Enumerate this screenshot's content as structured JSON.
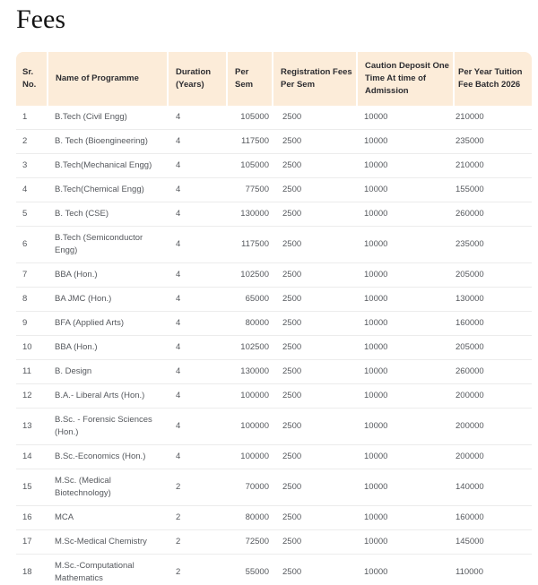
{
  "page": {
    "title": "Fees"
  },
  "colors": {
    "header_bg": "#fcecd9",
    "divider": "#ececec",
    "body_text": "#55585d",
    "header_text": "#2d2d31",
    "title_text": "#131313"
  },
  "table": {
    "fields": [
      "sr",
      "name",
      "duration",
      "per_sem",
      "registration",
      "caution",
      "per_year"
    ],
    "columns": [
      {
        "key": "sr",
        "label": "Sr. No."
      },
      {
        "key": "name",
        "label": "Name of Programme"
      },
      {
        "key": "duration",
        "label": "Duration (Years)"
      },
      {
        "key": "per_sem",
        "label": "Per Sem"
      },
      {
        "key": "registration",
        "label": "Registration Fees Per Sem"
      },
      {
        "key": "caution",
        "label": "Caution Deposit One Time At time of Admission"
      },
      {
        "key": "per_year",
        "label": "Per Year Tuition Fee Batch 2026"
      }
    ],
    "rows": [
      {
        "sr": "1",
        "name": "B.Tech (Civil Engg)",
        "duration": "4",
        "per_sem": "105000",
        "registration": "2500",
        "caution": "10000",
        "per_year": "210000"
      },
      {
        "sr": "2",
        "name": "B. Tech (Bioengineering)",
        "duration": "4",
        "per_sem": "117500",
        "registration": "2500",
        "caution": "10000",
        "per_year": "235000"
      },
      {
        "sr": "3",
        "name": "B.Tech(Mechanical Engg)",
        "duration": "4",
        "per_sem": "105000",
        "registration": "2500",
        "caution": "10000",
        "per_year": "210000"
      },
      {
        "sr": "4",
        "name": "B.Tech(Chemical Engg)",
        "duration": "4",
        "per_sem": "77500",
        "registration": "2500",
        "caution": "10000",
        "per_year": "155000"
      },
      {
        "sr": "5",
        "name": "B. Tech (CSE)",
        "duration": "4",
        "per_sem": "130000",
        "registration": "2500",
        "caution": "10000",
        "per_year": "260000"
      },
      {
        "sr": "6",
        "name": "B.Tech (Semiconductor Engg)",
        "duration": "4",
        "per_sem": "117500",
        "registration": "2500",
        "caution": "10000",
        "per_year": "235000"
      },
      {
        "sr": "7",
        "name": "BBA (Hon.)",
        "duration": "4",
        "per_sem": "102500",
        "registration": "2500",
        "caution": "10000",
        "per_year": "205000"
      },
      {
        "sr": "8",
        "name": "BA JMC (Hon.)",
        "duration": "4",
        "per_sem": "65000",
        "registration": "2500",
        "caution": "10000",
        "per_year": "130000"
      },
      {
        "sr": "9",
        "name": "BFA (Applied Arts)",
        "duration": "4",
        "per_sem": "80000",
        "registration": "2500",
        "caution": "10000",
        "per_year": "160000"
      },
      {
        "sr": "10",
        "name": "BBA (Hon.)",
        "duration": "4",
        "per_sem": "102500",
        "registration": "2500",
        "caution": "10000",
        "per_year": "205000"
      },
      {
        "sr": "11",
        "name": "B. Design",
        "duration": "4",
        "per_sem": "130000",
        "registration": "2500",
        "caution": "10000",
        "per_year": "260000"
      },
      {
        "sr": "12",
        "name": "B.A.- Liberal Arts (Hon.)",
        "duration": "4",
        "per_sem": "100000",
        "registration": "2500",
        "caution": "10000",
        "per_year": "200000"
      },
      {
        "sr": "13",
        "name": "B.Sc. - Forensic Sciences (Hon.)",
        "duration": "4",
        "per_sem": "100000",
        "registration": "2500",
        "caution": "10000",
        "per_year": "200000"
      },
      {
        "sr": "14",
        "name": "B.Sc.-Economics (Hon.)",
        "duration": "4",
        "per_sem": "100000",
        "registration": "2500",
        "caution": "10000",
        "per_year": "200000"
      },
      {
        "sr": "15",
        "name": "M.Sc. (Medical Biotechnology)",
        "duration": "2",
        "per_sem": "70000",
        "registration": "2500",
        "caution": "10000",
        "per_year": "140000"
      },
      {
        "sr": "16",
        "name": "MCA",
        "duration": "2",
        "per_sem": "80000",
        "registration": "2500",
        "caution": "10000",
        "per_year": "160000"
      },
      {
        "sr": "17",
        "name": "M.Sc-Medical Chemistry",
        "duration": "2",
        "per_sem": "72500",
        "registration": "2500",
        "caution": "10000",
        "per_year": "145000"
      },
      {
        "sr": "18",
        "name": "M.Sc.-Computational Mathematics",
        "duration": "2",
        "per_sem": "55000",
        "registration": "2500",
        "caution": "10000",
        "per_year": "110000"
      }
    ]
  }
}
